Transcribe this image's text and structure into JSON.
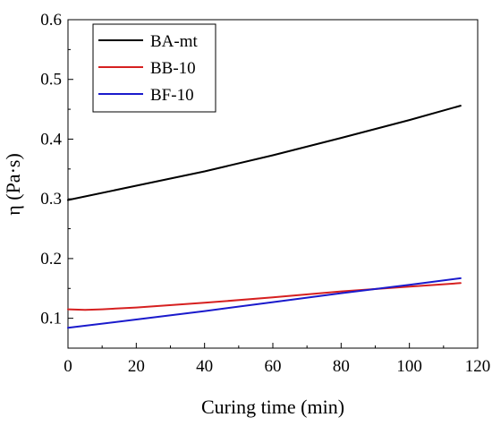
{
  "chart_data": {
    "type": "line",
    "title": "",
    "xlabel": "Curing time (min)",
    "ylabel": "η (Pa·s)",
    "xlim": [
      0,
      120
    ],
    "ylim": [
      0.05,
      0.6
    ],
    "xticks": [
      0,
      20,
      40,
      60,
      80,
      100,
      120
    ],
    "yticks": [
      0.1,
      0.2,
      0.3,
      0.4,
      0.5,
      0.6
    ],
    "grid": false,
    "legend_position": "top-left",
    "series": [
      {
        "name": "BA-mt",
        "color": "#000000",
        "x": [
          0,
          20,
          40,
          60,
          80,
          100,
          115
        ],
        "y": [
          0.298,
          0.322,
          0.346,
          0.373,
          0.402,
          0.432,
          0.456
        ]
      },
      {
        "name": "BB-10",
        "color": "#d62020",
        "x": [
          0,
          5,
          10,
          20,
          40,
          60,
          80,
          100,
          115
        ],
        "y": [
          0.115,
          0.114,
          0.115,
          0.118,
          0.126,
          0.135,
          0.145,
          0.153,
          0.159
        ]
      },
      {
        "name": "BF-10",
        "color": "#1a1acc",
        "x": [
          0,
          20,
          40,
          60,
          80,
          100,
          115
        ],
        "y": [
          0.084,
          0.098,
          0.112,
          0.127,
          0.142,
          0.156,
          0.167
        ]
      }
    ]
  }
}
